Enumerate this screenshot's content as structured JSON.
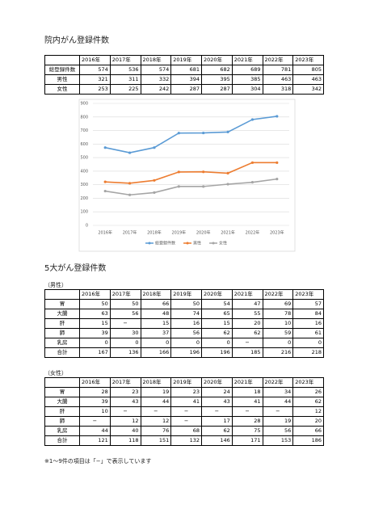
{
  "title": "院内がん登録件数",
  "table1": {
    "headers": [
      "2016年",
      "2017年",
      "2018年",
      "2019年",
      "2020年",
      "2021年",
      "2022年",
      "2023年"
    ],
    "rows": [
      {
        "label": "総登録件数",
        "values": [
          574,
          536,
          574,
          681,
          682,
          689,
          781,
          805
        ]
      },
      {
        "label": "男性",
        "values": [
          321,
          311,
          332,
          394,
          395,
          385,
          463,
          463
        ]
      },
      {
        "label": "女性",
        "values": [
          253,
          225,
          242,
          287,
          287,
          304,
          318,
          342
        ]
      }
    ]
  },
  "chart_data": {
    "type": "line",
    "categories": [
      "2016年",
      "2017年",
      "2018年",
      "2019年",
      "2020年",
      "2021年",
      "2022年",
      "2023年"
    ],
    "series": [
      {
        "name": "総登録件数",
        "color": "#5b9bd5",
        "values": [
          574,
          536,
          574,
          681,
          682,
          689,
          781,
          805
        ]
      },
      {
        "name": "男性",
        "color": "#ed7d31",
        "values": [
          321,
          311,
          332,
          394,
          395,
          385,
          463,
          463
        ]
      },
      {
        "name": "女性",
        "color": "#a5a5a5",
        "values": [
          253,
          225,
          242,
          287,
          287,
          304,
          318,
          342
        ]
      }
    ],
    "ylim": [
      0,
      900
    ],
    "yticks": [
      0,
      100,
      200,
      300,
      400,
      500,
      600,
      700,
      800,
      900
    ],
    "grid": true,
    "legend": "bottom"
  },
  "section2_title": "5大がん登録件数",
  "male_label": "（男性）",
  "male_table": {
    "headers": [
      "2016年",
      "2017年",
      "2018年",
      "2019年",
      "2020年",
      "2021年",
      "2022年",
      "2023年"
    ],
    "rows": [
      {
        "label": "胃",
        "values": [
          50,
          50,
          66,
          50,
          54,
          47,
          69,
          57
        ]
      },
      {
        "label": "大腸",
        "values": [
          63,
          56,
          48,
          74,
          65,
          55,
          78,
          84
        ]
      },
      {
        "label": "肝",
        "values": [
          15,
          "−",
          15,
          16,
          15,
          20,
          10,
          16
        ]
      },
      {
        "label": "肺",
        "values": [
          39,
          30,
          37,
          56,
          62,
          62,
          59,
          61
        ]
      },
      {
        "label": "乳房",
        "values": [
          0,
          0,
          0,
          0,
          0,
          "−",
          0,
          0
        ]
      },
      {
        "label": "合計",
        "values": [
          167,
          136,
          166,
          196,
          196,
          185,
          216,
          218
        ]
      }
    ]
  },
  "female_label": "（女性）",
  "female_table": {
    "headers": [
      "2016年",
      "2017年",
      "2018年",
      "2019年",
      "2020年",
      "2021年",
      "2022年",
      "2023年"
    ],
    "rows": [
      {
        "label": "胃",
        "values": [
          28,
          23,
          19,
          23,
          24,
          18,
          34,
          26
        ]
      },
      {
        "label": "大腸",
        "values": [
          39,
          43,
          44,
          41,
          43,
          41,
          44,
          62
        ]
      },
      {
        "label": "肝",
        "values": [
          10,
          "−",
          "−",
          "−",
          "−",
          "−",
          "−",
          12
        ]
      },
      {
        "label": "肺",
        "values": [
          "−",
          12,
          12,
          "−",
          17,
          28,
          19,
          20
        ]
      },
      {
        "label": "乳房",
        "values": [
          44,
          40,
          76,
          68,
          62,
          75,
          56,
          66
        ]
      },
      {
        "label": "合計",
        "values": [
          121,
          118,
          151,
          132,
          146,
          171,
          153,
          186
        ]
      }
    ]
  },
  "footnote": "※1～9件の項目は「−」で表示しています"
}
